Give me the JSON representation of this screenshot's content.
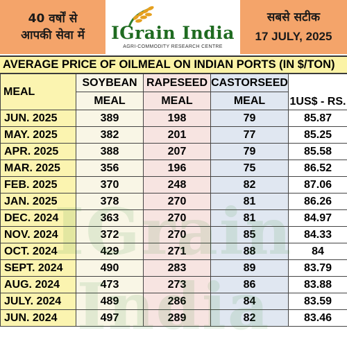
{
  "header": {
    "left_line1": "40 वर्षों से",
    "left_line2": "आपकी सेवा में",
    "brand": "IGrain India",
    "brand_sub": "AGRI-COMMODITY RESEARCH CENTRE",
    "right_line1": "सबसे सटीक",
    "date": "17 JULY, 2025"
  },
  "title": "AVERAGE PRICE OF OILMEAL ON INDIAN PORTS (IN $/TON)",
  "columns": {
    "meal": "MEAL",
    "soy_1": "SOYBEAN",
    "soy_2": "MEAL",
    "rape_1": "RAPESEED",
    "rape_2": "MEAL",
    "cast_1": "CASTORSEED",
    "cast_2": "MEAL",
    "usd": "1US$ - RS."
  },
  "rows": [
    {
      "month": "JUN. 2025",
      "soy": "389",
      "rape": "198",
      "cast": "79",
      "usd": "85.87"
    },
    {
      "month": "MAY. 2025",
      "soy": "382",
      "rape": "201",
      "cast": "77",
      "usd": "85.25"
    },
    {
      "month": "APR. 2025",
      "soy": "388",
      "rape": "207",
      "cast": "79",
      "usd": "85.58"
    },
    {
      "month": "MAR. 2025",
      "soy": "356",
      "rape": "196",
      "cast": "75",
      "usd": "86.52"
    },
    {
      "month": "FEB. 2025",
      "soy": "370",
      "rape": "248",
      "cast": "82",
      "usd": "87.06"
    },
    {
      "month": "JAN. 2025",
      "soy": "378",
      "rape": "270",
      "cast": "81",
      "usd": "86.26"
    },
    {
      "month": "DEC. 2024",
      "soy": "363",
      "rape": "270",
      "cast": "81",
      "usd": "84.97"
    },
    {
      "month": "NOV. 2024",
      "soy": "372",
      "rape": "270",
      "cast": "85",
      "usd": "84.33"
    },
    {
      "month": "OCT. 2024",
      "soy": "429",
      "rape": "271",
      "cast": "88",
      "usd": "84"
    },
    {
      "month": "SEPT. 2024",
      "soy": "490",
      "rape": "283",
      "cast": "89",
      "usd": "83.79"
    },
    {
      "month": "AUG. 2024",
      "soy": "473",
      "rape": "273",
      "cast": "86",
      "usd": "83.88"
    },
    {
      "month": "JULY. 2024",
      "soy": "489",
      "rape": "286",
      "cast": "84",
      "usd": "83.59"
    },
    {
      "month": "JUN. 2024",
      "soy": "497",
      "rape": "289",
      "cast": "82",
      "usd": "83.46"
    }
  ],
  "colors": {
    "header_orange": "#f4a46a",
    "title_yellow": "#fbf3a6",
    "brand_green": "#1f6b21"
  }
}
